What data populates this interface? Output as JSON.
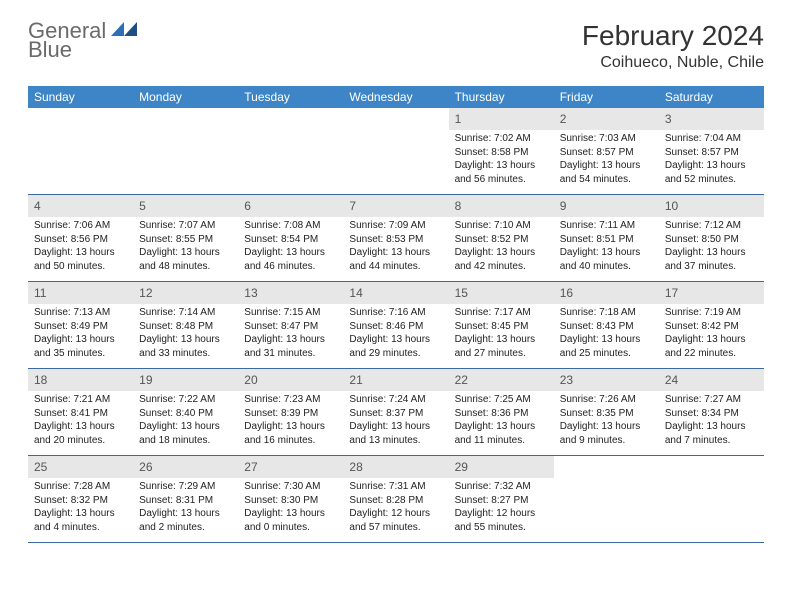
{
  "logo": {
    "word1": "General",
    "word2": "Blue"
  },
  "title": "February 2024",
  "location": "Coihueco, Nuble, Chile",
  "colors": {
    "header_bg": "#3d85c6",
    "header_text": "#ffffff",
    "daynum_bg": "#e7e7e7",
    "week_border": "#3d6a9e",
    "logo_gray": "#6a6a6a",
    "logo_blue": "#2c6fb5"
  },
  "weekdays": [
    "Sunday",
    "Monday",
    "Tuesday",
    "Wednesday",
    "Thursday",
    "Friday",
    "Saturday"
  ],
  "grid": {
    "columns": 7,
    "rows": 5
  },
  "days": [
    null,
    null,
    null,
    null,
    {
      "n": "1",
      "sr": "7:02 AM",
      "ss": "8:58 PM",
      "dl": "13 hours and 56 minutes."
    },
    {
      "n": "2",
      "sr": "7:03 AM",
      "ss": "8:57 PM",
      "dl": "13 hours and 54 minutes."
    },
    {
      "n": "3",
      "sr": "7:04 AM",
      "ss": "8:57 PM",
      "dl": "13 hours and 52 minutes."
    },
    {
      "n": "4",
      "sr": "7:06 AM",
      "ss": "8:56 PM",
      "dl": "13 hours and 50 minutes."
    },
    {
      "n": "5",
      "sr": "7:07 AM",
      "ss": "8:55 PM",
      "dl": "13 hours and 48 minutes."
    },
    {
      "n": "6",
      "sr": "7:08 AM",
      "ss": "8:54 PM",
      "dl": "13 hours and 46 minutes."
    },
    {
      "n": "7",
      "sr": "7:09 AM",
      "ss": "8:53 PM",
      "dl": "13 hours and 44 minutes."
    },
    {
      "n": "8",
      "sr": "7:10 AM",
      "ss": "8:52 PM",
      "dl": "13 hours and 42 minutes."
    },
    {
      "n": "9",
      "sr": "7:11 AM",
      "ss": "8:51 PM",
      "dl": "13 hours and 40 minutes."
    },
    {
      "n": "10",
      "sr": "7:12 AM",
      "ss": "8:50 PM",
      "dl": "13 hours and 37 minutes."
    },
    {
      "n": "11",
      "sr": "7:13 AM",
      "ss": "8:49 PM",
      "dl": "13 hours and 35 minutes."
    },
    {
      "n": "12",
      "sr": "7:14 AM",
      "ss": "8:48 PM",
      "dl": "13 hours and 33 minutes."
    },
    {
      "n": "13",
      "sr": "7:15 AM",
      "ss": "8:47 PM",
      "dl": "13 hours and 31 minutes."
    },
    {
      "n": "14",
      "sr": "7:16 AM",
      "ss": "8:46 PM",
      "dl": "13 hours and 29 minutes."
    },
    {
      "n": "15",
      "sr": "7:17 AM",
      "ss": "8:45 PM",
      "dl": "13 hours and 27 minutes."
    },
    {
      "n": "16",
      "sr": "7:18 AM",
      "ss": "8:43 PM",
      "dl": "13 hours and 25 minutes."
    },
    {
      "n": "17",
      "sr": "7:19 AM",
      "ss": "8:42 PM",
      "dl": "13 hours and 22 minutes."
    },
    {
      "n": "18",
      "sr": "7:21 AM",
      "ss": "8:41 PM",
      "dl": "13 hours and 20 minutes."
    },
    {
      "n": "19",
      "sr": "7:22 AM",
      "ss": "8:40 PM",
      "dl": "13 hours and 18 minutes."
    },
    {
      "n": "20",
      "sr": "7:23 AM",
      "ss": "8:39 PM",
      "dl": "13 hours and 16 minutes."
    },
    {
      "n": "21",
      "sr": "7:24 AM",
      "ss": "8:37 PM",
      "dl": "13 hours and 13 minutes."
    },
    {
      "n": "22",
      "sr": "7:25 AM",
      "ss": "8:36 PM",
      "dl": "13 hours and 11 minutes."
    },
    {
      "n": "23",
      "sr": "7:26 AM",
      "ss": "8:35 PM",
      "dl": "13 hours and 9 minutes."
    },
    {
      "n": "24",
      "sr": "7:27 AM",
      "ss": "8:34 PM",
      "dl": "13 hours and 7 minutes."
    },
    {
      "n": "25",
      "sr": "7:28 AM",
      "ss": "8:32 PM",
      "dl": "13 hours and 4 minutes."
    },
    {
      "n": "26",
      "sr": "7:29 AM",
      "ss": "8:31 PM",
      "dl": "13 hours and 2 minutes."
    },
    {
      "n": "27",
      "sr": "7:30 AM",
      "ss": "8:30 PM",
      "dl": "13 hours and 0 minutes."
    },
    {
      "n": "28",
      "sr": "7:31 AM",
      "ss": "8:28 PM",
      "dl": "12 hours and 57 minutes."
    },
    {
      "n": "29",
      "sr": "7:32 AM",
      "ss": "8:27 PM",
      "dl": "12 hours and 55 minutes."
    },
    null,
    null
  ],
  "labels": {
    "sunrise": "Sunrise: ",
    "sunset": "Sunset: ",
    "daylight": "Daylight: "
  }
}
